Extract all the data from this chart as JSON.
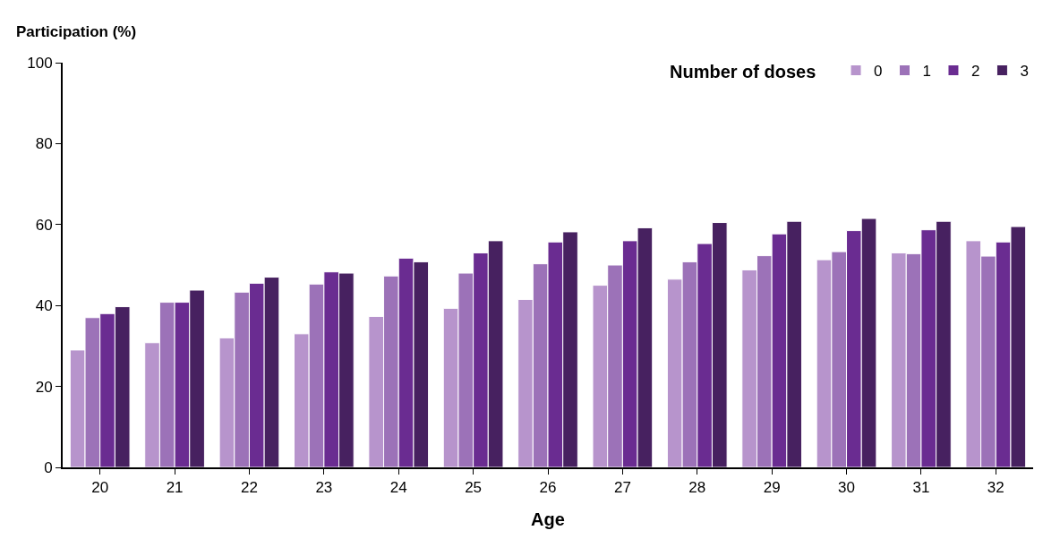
{
  "chart_data": {
    "type": "bar",
    "xlabel": "Age",
    "ylabel": "Participation (%)",
    "legend_title": "Number of doses",
    "categories": [
      "20",
      "21",
      "22",
      "23",
      "24",
      "25",
      "26",
      "27",
      "28",
      "29",
      "30",
      "31",
      "32"
    ],
    "series": [
      {
        "name": "0",
        "color": "#b794cc",
        "values": [
          29,
          30.8,
          32,
          33,
          37.3,
          39.3,
          41.5,
          45,
          46.5,
          48.8,
          51.3,
          53,
          56
        ]
      },
      {
        "name": "1",
        "color": "#9c72b8",
        "values": [
          37,
          40.8,
          43.3,
          45.3,
          47.3,
          48,
          50.3,
          50,
          50.8,
          52.3,
          53.3,
          52.8,
          52.2
        ]
      },
      {
        "name": "2",
        "color": "#6a2c91",
        "values": [
          38,
          40.8,
          45.5,
          48.3,
          51.7,
          53,
          55.7,
          56,
          55.3,
          57.7,
          58.5,
          58.7,
          55.7
        ]
      },
      {
        "name": "3",
        "color": "#472160",
        "values": [
          39.7,
          43.8,
          47,
          48,
          50.8,
          56,
          58.2,
          59.2,
          60.5,
          60.8,
          61.5,
          60.8,
          59.5
        ]
      }
    ],
    "ylim": [
      0,
      100
    ],
    "yticks": [
      0,
      20,
      40,
      60,
      80,
      100
    ],
    "grid": false,
    "legend": "top right"
  }
}
